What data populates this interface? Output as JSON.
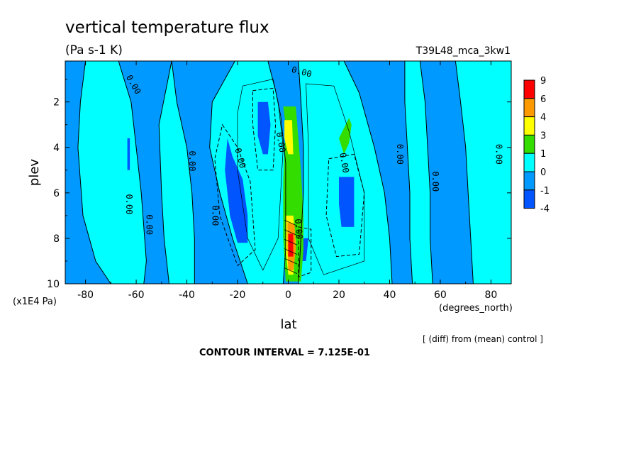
{
  "chart_data": {
    "type": "heatmap",
    "title": "vertical temperature flux",
    "units": "(Pa s-1 K)",
    "run_label": "T39L48_mca_3kw1",
    "xlabel": "lat",
    "ylabel": "plev",
    "x_units": "(degrees_north)",
    "y_units": "(x1E4 Pa)",
    "xlim": [
      -88,
      88
    ],
    "ylim": [
      10,
      0.2
    ],
    "x_ticks": [
      -80,
      -60,
      -40,
      -20,
      0,
      20,
      40,
      60,
      80
    ],
    "y_ticks": [
      2,
      4,
      6,
      8,
      10
    ],
    "contour_interval_text": "CONTOUR INTERVAL = 7.125E-01",
    "footnote": "[ (diff) from (mean) control ]",
    "zero_contour_label": "0.00",
    "colorbar": {
      "boundaries": [
        "9",
        "6",
        "4",
        "3",
        "1",
        "0",
        "-1",
        "-4"
      ],
      "colors": [
        "#ff0000",
        "#ff9900",
        "#ffff00",
        "#33dd00",
        "#00ffff",
        "#0099ff",
        "#0055ff"
      ]
    },
    "fill_colors": {
      "neg_weak": "#0099ff",
      "neg_strong": "#0055ff",
      "pos_weak": "#00ffff",
      "pos_1": "#33dd00",
      "pos_3": "#ffff00",
      "pos_4": "#ff9900",
      "pos_6": "#ff0000"
    }
  }
}
